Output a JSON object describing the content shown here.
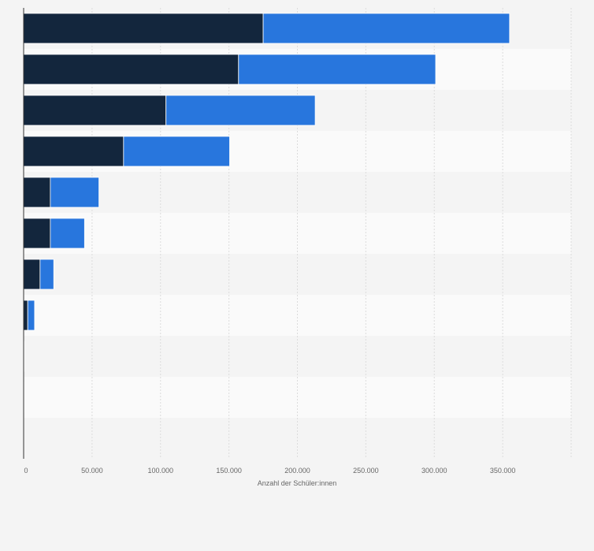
{
  "chart_data": {
    "type": "bar",
    "orientation": "horizontal",
    "stacked": true,
    "categories": [
      "",
      "",
      "",
      "",
      "",
      "",
      "",
      "",
      "",
      "",
      ""
    ],
    "series": [
      {
        "name": "",
        "color": "#13263d",
        "values": [
          175000,
          157000,
          104000,
          73000,
          19500,
          19500,
          12000,
          3000,
          400,
          150,
          50
        ]
      },
      {
        "name": "",
        "color": "#2876dd",
        "values": [
          180000,
          144000,
          109000,
          77500,
          35500,
          25000,
          10000,
          5000,
          300,
          100,
          50
        ]
      }
    ],
    "xlabel": "Anzahl der Schüler:innen",
    "xlim": [
      0,
      400000
    ],
    "xticks": [
      0,
      50000,
      100000,
      150000,
      200000,
      250000,
      300000,
      350000
    ],
    "xtick_labels": [
      "0",
      "50.000",
      "100.000",
      "150.000",
      "200.000",
      "250.000",
      "300.000",
      "350.000"
    ],
    "grid": true,
    "colors": {
      "background": "#f4f4f4",
      "band_light": "#fafafa",
      "band_dark": "#f4f4f4",
      "grid": "#dcdcdc",
      "axis": "#333333"
    }
  }
}
